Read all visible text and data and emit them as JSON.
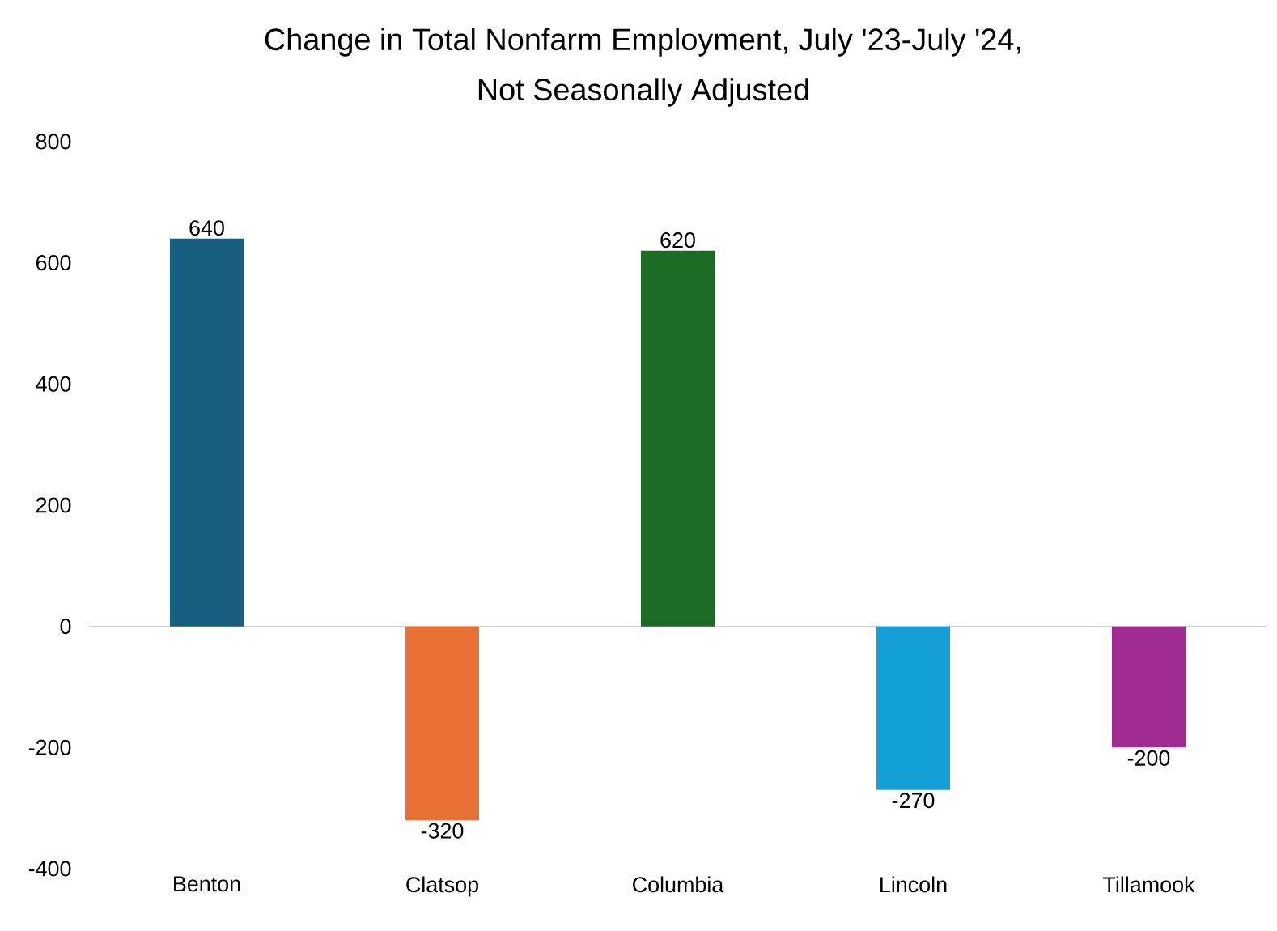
{
  "chart_data": {
    "type": "bar",
    "title": "Change in Total Nonfarm Employment, July '23-July '24,",
    "subtitle": "Not Seasonally Adjusted",
    "categories": [
      "Benton",
      "Clatsop",
      "Columbia",
      "Lincoln",
      "Tillamook"
    ],
    "values": [
      640,
      -320,
      620,
      -270,
      -200
    ],
    "colors": [
      "#175f7f",
      "#e87133",
      "#1b6b24",
      "#12a0d7",
      "#a02b93"
    ],
    "ylim": [
      -400,
      800
    ],
    "yticks": [
      -400,
      -200,
      0,
      200,
      400,
      600,
      800
    ],
    "data_labels": true
  }
}
